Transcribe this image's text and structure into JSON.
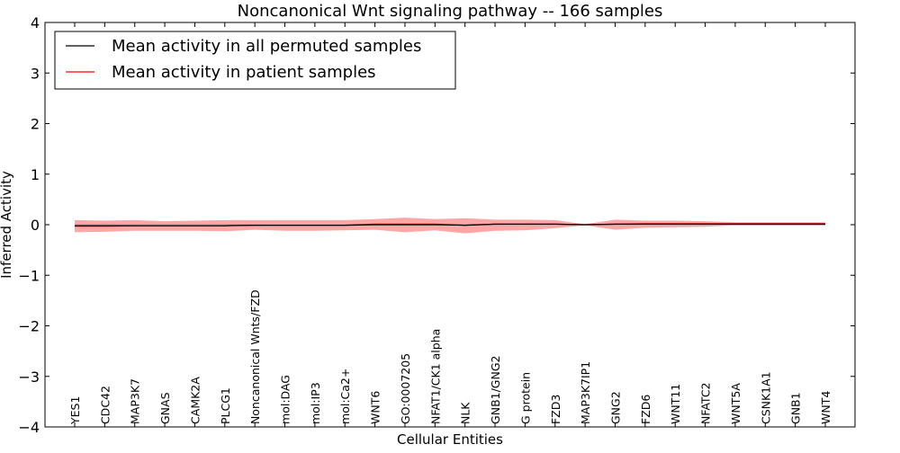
{
  "chart_data": {
    "type": "line",
    "title": "Noncanonical Wnt signaling pathway -- 166 samples",
    "xlabel": "Cellular Entities",
    "ylabel": "Inferred Activity",
    "ylim": [
      -4,
      4
    ],
    "yticks": [
      4,
      3,
      2,
      1,
      0,
      -1,
      -2,
      -3,
      -4
    ],
    "ytick_labels": [
      "4",
      "3",
      "2",
      "1",
      "0",
      "−1",
      "−2",
      "−3",
      "−4"
    ],
    "grid": false,
    "legend_position": "top-left",
    "categories": [
      "YES1",
      "CDC42",
      "MAP3K7",
      "GNAS",
      "CAMK2A",
      "PLCG1",
      "Noncanonical Wnts/FZD",
      "mol:DAG",
      "mol:IP3",
      "mol:Ca2+",
      "WNT6",
      "GO:0007205",
      "NFAT1/CK1 alpha",
      "NLK",
      "GNB1/GNG2",
      "G protein",
      "FZD3",
      "MAP3K7IP1",
      "GNG2",
      "FZD6",
      "WNT11",
      "NFATC2",
      "WNT5A",
      "CSNK1A1",
      "GNB1",
      "WNT4"
    ],
    "series": [
      {
        "name": "Mean activity in all permuted samples",
        "color": "#000000",
        "values": [
          -0.02,
          -0.02,
          -0.02,
          -0.02,
          -0.02,
          -0.02,
          -0.01,
          -0.01,
          -0.01,
          -0.01,
          0.0,
          0.0,
          0.0,
          -0.01,
          0.01,
          0.01,
          0.01,
          0.0,
          0.01,
          0.01,
          0.01,
          0.01,
          0.01,
          0.01,
          0.01,
          0.01
        ]
      },
      {
        "name": "Mean activity in patient samples",
        "color": "#ff0000",
        "values": [
          -0.03,
          -0.03,
          -0.02,
          -0.02,
          -0.02,
          -0.02,
          -0.01,
          -0.01,
          -0.01,
          -0.01,
          0.01,
          0.01,
          0.01,
          -0.01,
          0.01,
          0.01,
          0.01,
          0.0,
          0.01,
          0.02,
          0.02,
          0.02,
          0.02,
          0.02,
          0.02,
          0.02
        ]
      }
    ],
    "band": {
      "color": "#ff0000",
      "lower": [
        -0.15,
        -0.14,
        -0.12,
        -0.12,
        -0.12,
        -0.13,
        -0.1,
        -0.12,
        -0.12,
        -0.11,
        -0.1,
        -0.15,
        -0.11,
        -0.17,
        -0.12,
        -0.11,
        -0.07,
        -0.01,
        -0.1,
        -0.06,
        -0.05,
        -0.04,
        -0.01,
        -0.01,
        -0.01,
        -0.01
      ],
      "upper": [
        0.09,
        0.08,
        0.09,
        0.07,
        0.08,
        0.09,
        0.09,
        0.09,
        0.09,
        0.09,
        0.11,
        0.14,
        0.11,
        0.13,
        0.1,
        0.1,
        0.09,
        0.01,
        0.1,
        0.08,
        0.08,
        0.07,
        0.05,
        0.05,
        0.05,
        0.05
      ]
    },
    "permuted_band": {
      "color": "#7fa8a8",
      "lower": [
        -0.02,
        -0.02,
        -0.02,
        -0.02,
        -0.02,
        -0.02,
        -0.02,
        -0.02,
        -0.02,
        -0.02,
        -0.02,
        -0.02,
        -0.02,
        -0.02,
        -0.02,
        -0.02,
        -0.02,
        -0.01,
        -0.02,
        -0.02,
        -0.02,
        -0.02,
        -0.02,
        -0.02,
        -0.02,
        -0.02
      ],
      "upper": [
        0.02,
        0.02,
        0.02,
        0.02,
        0.02,
        0.02,
        0.02,
        0.02,
        0.02,
        0.02,
        0.02,
        0.02,
        0.02,
        0.02,
        0.02,
        0.02,
        0.02,
        0.01,
        0.02,
        0.02,
        0.02,
        0.02,
        0.02,
        0.02,
        0.02,
        0.02
      ]
    }
  }
}
